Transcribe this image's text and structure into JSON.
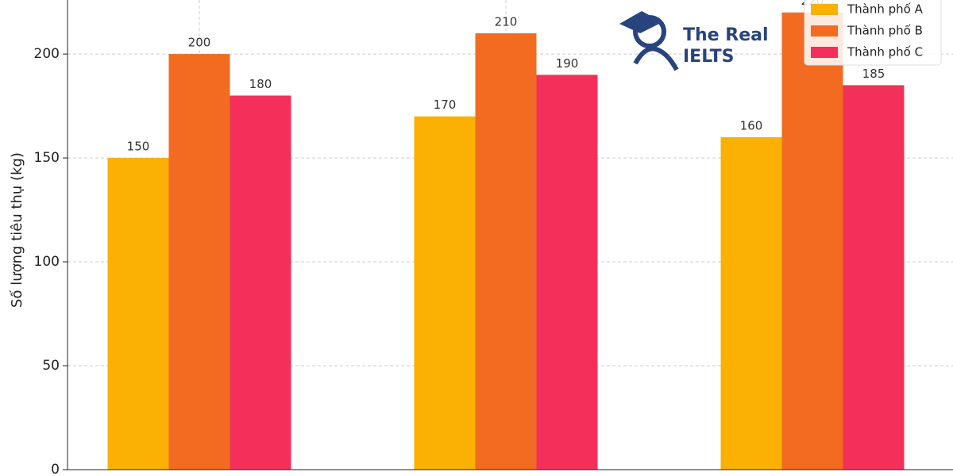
{
  "chart_data": {
    "type": "bar",
    "y_label": "Số lượng tiêu thụ (kg)",
    "categories": [
      null,
      null,
      null
    ],
    "series": [
      {
        "name": "Thành phố A",
        "color": "#fbb004",
        "values": [
          150,
          170,
          160
        ]
      },
      {
        "name": "Thành phố B",
        "color": "#f26b21",
        "values": [
          200,
          210,
          220
        ]
      },
      {
        "name": "Thành phố C",
        "color": "#f2305a",
        "values": [
          180,
          190,
          185
        ]
      }
    ],
    "ylim": [
      0,
      226
    ],
    "yticks": [
      0,
      50,
      100,
      150,
      200
    ],
    "grid": true,
    "legend": "upper right",
    "watermark": {
      "line1": "The Real",
      "line2": "IELTS"
    }
  }
}
